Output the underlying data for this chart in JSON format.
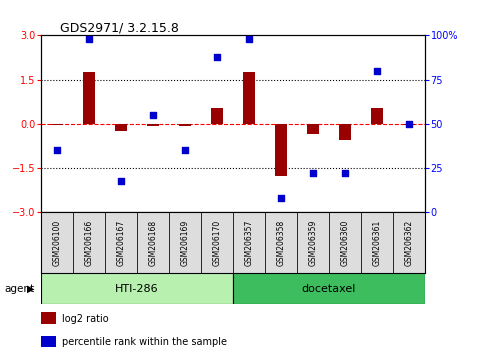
{
  "title": "GDS2971/ 3.2.15.8",
  "samples": [
    "GSM206100",
    "GSM206166",
    "GSM206167",
    "GSM206168",
    "GSM206169",
    "GSM206170",
    "GSM206357",
    "GSM206358",
    "GSM206359",
    "GSM206360",
    "GSM206361",
    "GSM206362"
  ],
  "log2_ratio": [
    -0.05,
    1.75,
    -0.25,
    -0.07,
    -0.07,
    0.55,
    1.75,
    -1.75,
    -0.35,
    -0.55,
    0.55,
    -0.05
  ],
  "pct_rank": [
    35,
    98,
    18,
    55,
    35,
    88,
    98,
    8,
    22,
    22,
    80,
    50
  ],
  "groups": [
    {
      "label": "HTI-286",
      "start": 0,
      "end": 5,
      "color": "#b8f0b0"
    },
    {
      "label": "docetaxel",
      "start": 6,
      "end": 11,
      "color": "#3dbd5e"
    }
  ],
  "bar_color": "#990000",
  "dot_color": "#0000CC",
  "ylim_left": [
    -3,
    3
  ],
  "ylim_right": [
    0,
    100
  ],
  "yticks_left": [
    -3,
    -1.5,
    0,
    1.5,
    3
  ],
  "yticks_right": [
    0,
    25,
    50,
    75,
    100
  ],
  "agent_label": "agent",
  "legend_items": [
    {
      "label": "log2 ratio",
      "color": "#990000"
    },
    {
      "label": "percentile rank within the sample",
      "color": "#0000CC"
    }
  ],
  "bg_color": "#ffffff"
}
